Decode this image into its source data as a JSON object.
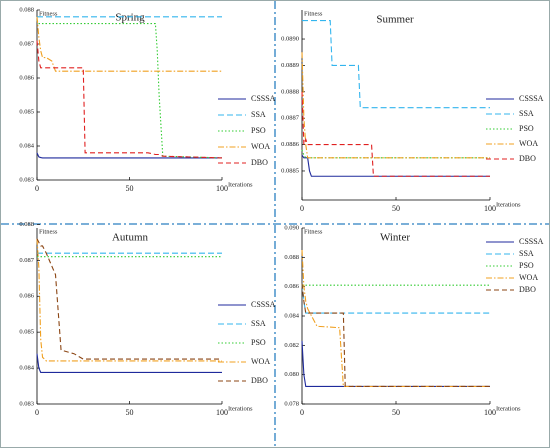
{
  "chart_data": [
    {
      "type": "line",
      "title": "Spring",
      "ylabel": "Fitness",
      "xlabel": "Iterations",
      "x": [
        0,
        1,
        2,
        3,
        5,
        8,
        10,
        25,
        26,
        60,
        64,
        65,
        66,
        68,
        100
      ],
      "xlim": [
        0,
        100
      ],
      "xticks": [
        0,
        50,
        100
      ],
      "ylim": [
        0.083,
        0.088
      ],
      "yticks": [
        0.083,
        0.084,
        0.085,
        0.086,
        0.087,
        0.088
      ],
      "series": [
        {
          "name": "CSSSA",
          "color": "#1f2a9c",
          "values": [
            0.0838,
            0.08368,
            0.08366,
            0.08365,
            0.08365,
            0.08365,
            0.08365,
            0.08365,
            0.08365,
            0.08365,
            0.08365,
            0.08365,
            0.08365,
            0.08365,
            0.08365
          ]
        },
        {
          "name": "SSA",
          "color": "#33b5ee",
          "values": [
            0.0878,
            0.0878,
            0.0878,
            0.0878,
            0.0878,
            0.0878,
            0.0878,
            0.0878,
            0.0878,
            0.0878,
            0.0878,
            0.0878,
            0.0878,
            0.0878,
            0.0878
          ]
        },
        {
          "name": "PSO",
          "color": "#33cc33",
          "values": [
            0.0877,
            0.0876,
            0.0876,
            0.0876,
            0.0876,
            0.0876,
            0.0876,
            0.0876,
            0.0876,
            0.0876,
            0.0876,
            0.0868,
            0.0855,
            0.0837,
            0.08365
          ]
        },
        {
          "name": "WOA",
          "color": "#f0a020",
          "values": [
            0.0878,
            0.0872,
            0.0868,
            0.0866,
            0.0866,
            0.0865,
            0.0862,
            0.0862,
            0.0862,
            0.0862,
            0.0862,
            0.0862,
            0.0862,
            0.0862,
            0.0862
          ]
        },
        {
          "name": "DBO",
          "color": "#e02020",
          "values": [
            0.0871,
            0.0865,
            0.0863,
            0.0863,
            0.0863,
            0.0863,
            0.0863,
            0.0863,
            0.0838,
            0.0838,
            0.08375,
            0.08375,
            0.08375,
            0.0837,
            0.08365
          ]
        }
      ]
    },
    {
      "type": "line",
      "title": "Summer",
      "ylabel": "Fitness",
      "xlabel": "Iterations",
      "x": [
        0,
        1,
        2,
        3,
        4,
        5,
        10,
        15,
        16,
        30,
        31,
        37,
        38,
        100
      ],
      "xlim": [
        0,
        100
      ],
      "xticks": [
        0,
        50,
        100
      ],
      "ylim": [
        0.08839,
        0.08911
      ],
      "yticks": [
        0.0885,
        0.0886,
        0.0887,
        0.0888,
        0.0889,
        {
          "value": 0.089,
          "label": "0.0890"
        }
      ],
      "series": [
        {
          "name": "CSSSA",
          "color": "#1f2a9c",
          "values": [
            0.08856,
            0.08855,
            0.08855,
            0.08855,
            0.0885,
            0.08848,
            0.08848,
            0.08848,
            0.08848,
            0.08848,
            0.08848,
            0.08848,
            0.08848,
            0.08848
          ]
        },
        {
          "name": "SSA",
          "color": "#33b5ee",
          "values": [
            0.08907,
            0.08907,
            0.08907,
            0.08907,
            0.08907,
            0.08907,
            0.08907,
            0.08907,
            0.0889,
            0.0889,
            0.08874,
            0.08874,
            0.08874,
            0.08874
          ]
        },
        {
          "name": "PSO",
          "color": "#33cc33",
          "values": [
            0.08858,
            0.08856,
            0.08855,
            0.08855,
            0.08855,
            0.08855,
            0.08855,
            0.08855,
            0.08855,
            0.08855,
            0.08855,
            0.08855,
            0.08855,
            0.08855
          ]
        },
        {
          "name": "WOA",
          "color": "#f0a020",
          "values": [
            0.08895,
            0.0887,
            0.0886,
            0.08855,
            0.08855,
            0.08855,
            0.08855,
            0.08855,
            0.08855,
            0.08855,
            0.08855,
            0.08855,
            0.08855,
            0.08855
          ]
        },
        {
          "name": "DBO",
          "color": "#e02020",
          "values": [
            0.0888,
            0.0886,
            0.08862,
            0.0886,
            0.0886,
            0.0886,
            0.0886,
            0.0886,
            0.0886,
            0.0886,
            0.0886,
            0.0886,
            0.08848,
            0.08848
          ]
        }
      ]
    },
    {
      "type": "line",
      "title": "Autumn",
      "ylabel": "Fitness",
      "xlabel": "Iterations",
      "x": [
        0,
        1,
        2,
        3,
        5,
        10,
        13,
        20,
        25,
        100
      ],
      "xlim": [
        0,
        100
      ],
      "xticks": [
        0,
        50,
        100
      ],
      "ylim": [
        0.083,
        0.0879
      ],
      "yticks": [
        0.083,
        0.084,
        0.085,
        0.086,
        0.087,
        0.088
      ],
      "series": [
        {
          "name": "CSSSA",
          "color": "#1f2a9c",
          "values": [
            0.0844,
            0.084,
            0.08388,
            0.08388,
            0.08388,
            0.08388,
            0.08388,
            0.08388,
            0.08388,
            0.08388
          ]
        },
        {
          "name": "SSA",
          "color": "#33b5ee",
          "values": [
            0.0872,
            0.0872,
            0.0872,
            0.0872,
            0.0872,
            0.0872,
            0.0872,
            0.0872,
            0.0872,
            0.0872
          ]
        },
        {
          "name": "PSO",
          "color": "#33cc33",
          "values": [
            0.0871,
            0.0871,
            0.0871,
            0.0871,
            0.0871,
            0.0871,
            0.0871,
            0.0871,
            0.0871,
            0.0871
          ]
        },
        {
          "name": "WOA",
          "color": "#f0a020",
          "values": [
            0.0876,
            0.0868,
            0.0848,
            0.0843,
            0.0842,
            0.0842,
            0.0842,
            0.0842,
            0.0842,
            0.0842
          ]
        },
        {
          "name": "DBO",
          "color": "#8b4513",
          "values": [
            0.0876,
            0.0875,
            0.0874,
            0.0874,
            0.0872,
            0.0866,
            0.0845,
            0.0844,
            0.08425,
            0.08425
          ]
        }
      ]
    },
    {
      "type": "line",
      "title": "Winter",
      "ylabel": "Fitness",
      "xlabel": "Iterations",
      "x": [
        0,
        1,
        2,
        3,
        8,
        20,
        22,
        23,
        100
      ],
      "xlim": [
        0,
        100
      ],
      "xticks": [
        0,
        50,
        100
      ],
      "ylim": [
        0.078,
        0.09
      ],
      "yticks": [
        0.078,
        {
          "value": 0.08,
          "label": "0.080"
        },
        0.082,
        0.084,
        0.086,
        0.088,
        {
          "value": 0.09,
          "label": "0.090"
        }
      ],
      "series": [
        {
          "name": "CSSSA",
          "color": "#1f2a9c",
          "values": [
            0.0823,
            0.08,
            0.0792,
            0.0792,
            0.0792,
            0.0792,
            0.0792,
            0.0792,
            0.0792
          ]
        },
        {
          "name": "SSA",
          "color": "#33b5ee",
          "values": [
            0.0862,
            0.085,
            0.0842,
            0.0842,
            0.0842,
            0.0842,
            0.0842,
            0.0842,
            0.0842
          ]
        },
        {
          "name": "PSO",
          "color": "#33cc33",
          "values": [
            0.0861,
            0.0861,
            0.0861,
            0.0861,
            0.0861,
            0.0861,
            0.0861,
            0.0861,
            0.0861
          ]
        },
        {
          "name": "WOA",
          "color": "#f0a020",
          "values": [
            0.0885,
            0.086,
            0.085,
            0.0845,
            0.0833,
            0.0832,
            0.0792,
            0.0792,
            0.0792
          ]
        },
        {
          "name": "DBO",
          "color": "#8b4513",
          "values": [
            0.0862,
            0.085,
            0.0842,
            0.0842,
            0.0842,
            0.0842,
            0.0842,
            0.0792,
            0.0792
          ]
        }
      ]
    }
  ]
}
